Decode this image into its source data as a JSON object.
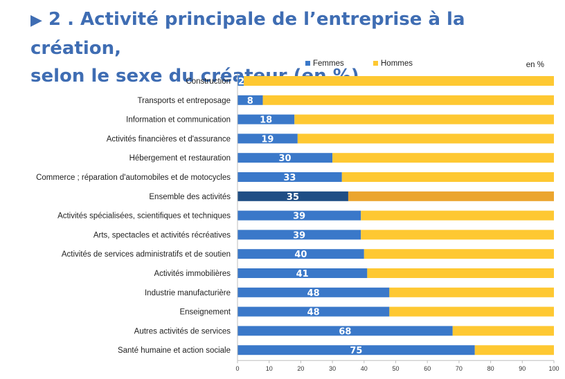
{
  "title_marker": "▶",
  "title_line1": "2 . Activité principale de l’entreprise à la création,",
  "title_line2": "selon le sexe du créateur (en %)",
  "chart_data": {
    "type": "bar",
    "orientation": "horizontal",
    "stacked": true,
    "unit_label": "en %",
    "legend_placement": "top",
    "xlim": [
      0,
      100
    ],
    "xticks": [
      0,
      10,
      20,
      30,
      40,
      50,
      60,
      70,
      80,
      90,
      100
    ],
    "highlight_category": "Ensemble des activités",
    "categories": [
      "Construction",
      "Transports et entreposage",
      "Information et communication",
      "Activités financières et d'assurance",
      "Hébergement et restauration",
      "Commerce ; réparation d'automobiles et de motocycles",
      "Ensemble des activités",
      "Activités spécialisées, scientifiques et techniques",
      "Arts, spectacles et activités récréatives",
      "Activités de services administratifs et de soutien",
      "Activités immobilières",
      "Industrie manufacturière",
      "Enseignement",
      "Autres activités de services",
      "Santé humaine et action sociale"
    ],
    "series": [
      {
        "name": "Femmes",
        "color": "#3a78c9",
        "highlight_color": "#1f4e85",
        "values": [
          2,
          8,
          18,
          19,
          30,
          33,
          35,
          39,
          39,
          40,
          41,
          48,
          48,
          68,
          75
        ],
        "labels": [
          "2",
          "8",
          "18",
          "19",
          "30",
          "33",
          "35",
          "39",
          "39",
          "40",
          "41",
          "48",
          "48",
          "68",
          "75"
        ]
      },
      {
        "name": "Hommes",
        "color": "#fec832",
        "highlight_color": "#eba52e",
        "values": [
          98,
          92,
          82,
          81,
          70,
          67,
          65,
          61,
          61,
          60,
          59,
          52,
          52,
          32,
          25
        ]
      }
    ]
  }
}
